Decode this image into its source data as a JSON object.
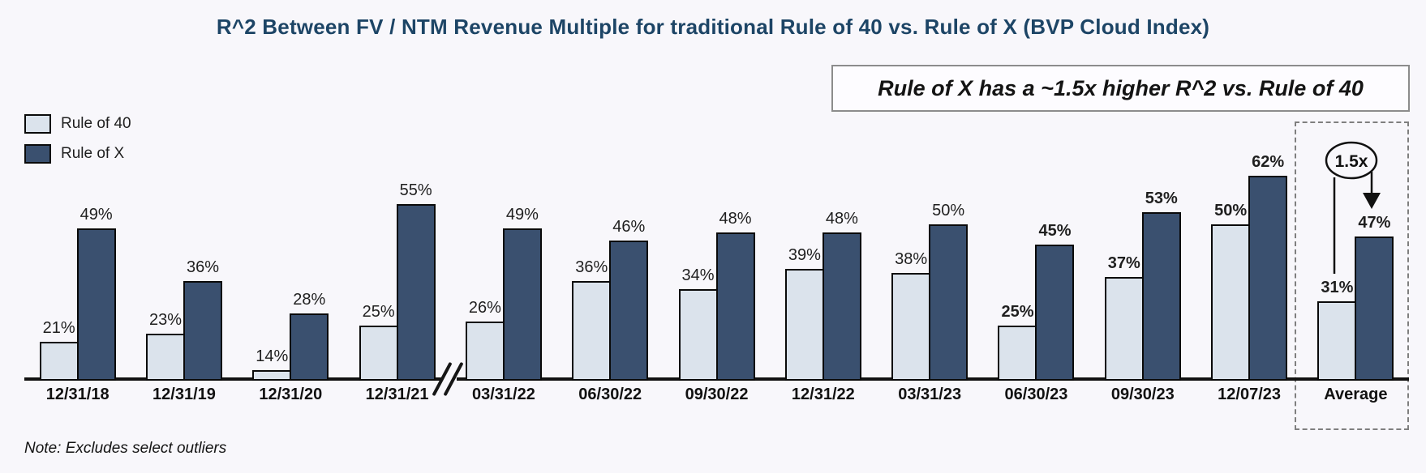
{
  "title": "R^2 Between FV / NTM Revenue Multiple for traditional Rule of 40 vs. Rule of X (BVP Cloud Index)",
  "callout": "Rule of X has a ~1.5x higher R^2 vs. Rule of 40",
  "note": "Note: Excludes select outliers",
  "annotation": {
    "multiplier_label": "1.5x"
  },
  "legend": [
    {
      "label": "Rule of 40",
      "color": "#dbe3ec"
    },
    {
      "label": "Rule of X",
      "color": "#3a506f"
    }
  ],
  "colors": {
    "background": "#f8f7fb",
    "title_text": "#1d4566",
    "rule_of_40_fill": "#dbe3ec",
    "rule_of_x_fill": "#3a506f",
    "bar_border": "#0a0a0a",
    "highlight_border": "#7f7f7f"
  },
  "chart_data": {
    "type": "bar",
    "title": "R^2 Between FV / NTM Revenue Multiple for traditional Rule of 40 vs. Rule of X (BVP Cloud Index)",
    "categories": [
      "12/31/18",
      "12/31/19",
      "12/31/20",
      "12/31/21",
      "03/31/22",
      "06/30/22",
      "09/30/22",
      "12/31/22",
      "03/31/23",
      "06/30/23",
      "09/30/23",
      "12/07/23",
      "Average"
    ],
    "series": [
      {
        "name": "Rule of 40",
        "color": "#dbe3ec",
        "values": [
          21,
          23,
          14,
          25,
          26,
          36,
          34,
          39,
          38,
          25,
          37,
          50,
          31
        ]
      },
      {
        "name": "Rule of X",
        "color": "#3a506f",
        "values": [
          49,
          36,
          28,
          55,
          49,
          46,
          48,
          48,
          50,
          45,
          53,
          62,
          47
        ]
      }
    ],
    "unit": "%",
    "data_labels": true,
    "bold_labels_from_index": 9,
    "axis_break_after_index": 3,
    "highlight_category": "Average",
    "highlight_note": "Rule of X average (47%) is ~1.5x the Rule of 40 average (31%)",
    "xlabel": "",
    "ylabel": "",
    "ylim": [
      11,
      65
    ],
    "grid": false,
    "legend_position": "top-left"
  }
}
